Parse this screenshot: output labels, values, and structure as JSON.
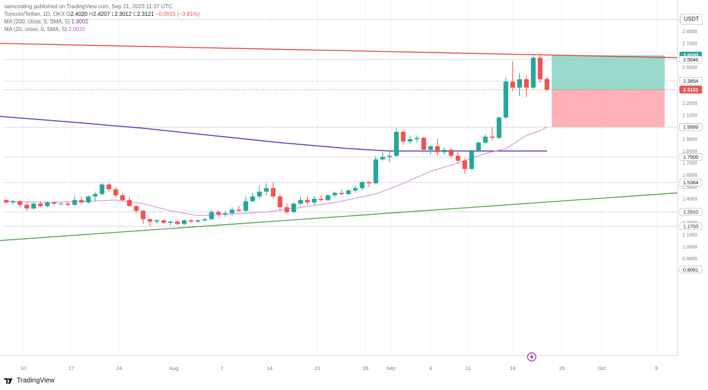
{
  "header": {
    "published": "samcooling published on TradingView.com, Sep 21, 2023 11:37 UTC",
    "symbol_line": {
      "symbol": "Toncoin/Tether, 1D, OKX",
      "o_label": "O",
      "o": "2.4020",
      "h_label": "H",
      "h": "2.4207",
      "l_label": "L",
      "l": "2.3012",
      "c_label": "C",
      "c": "2.3121",
      "change": "−0.0915 (−3.81%)"
    },
    "ma200": {
      "label": "MA (200, close, 0, SMA, 5)",
      "value": "1.8002"
    },
    "ma20": {
      "label": "MA (20, close, 0, SMA, 5)",
      "value": "2.0035"
    }
  },
  "unit_label": "USDT",
  "brand": "TradingView",
  "colors": {
    "up": "#26a69a",
    "down": "#ef5350",
    "ma20": "#ce93d8",
    "ma200": "#673ab7",
    "resistance": "#e53935",
    "support": "#43a047",
    "target_zone": "#7fd1bf",
    "stop_zone": "#fca5ab",
    "price_line": "#ef5350",
    "grid": "#e0e3eb"
  },
  "chart_data": {
    "type": "candlestick",
    "x_tick_labels": [
      "10",
      "17",
      "24",
      "Aug",
      "7",
      "14",
      "21",
      "28",
      "Sep",
      "4",
      "11",
      "18",
      "25",
      "Oct",
      "9"
    ],
    "y_tick_labels": [
      "2.8000",
      "2.7000",
      "2.5000",
      "2.3000",
      "2.2000",
      "2.1000",
      "1.9000",
      "1.8000",
      "1.7000",
      "1.6000",
      "1.5000",
      "1.4000",
      "1.2000",
      "1.1000",
      "1.0000",
      "0.9000"
    ],
    "ylim": [
      0.76,
      2.96
    ],
    "price_labels": [
      {
        "value": 2.8995,
        "text": "2.8995",
        "style": "outline"
      },
      {
        "value": 2.6,
        "text": "2.6000",
        "style": "green"
      },
      {
        "value": 2.5646,
        "text": "2.5646",
        "style": "outline"
      },
      {
        "value": 2.3854,
        "text": "2.3854",
        "style": "outline"
      },
      {
        "value": 2.3151,
        "text": "2.3151",
        "style": "dark"
      },
      {
        "value": 2.3121,
        "text": "2.3121",
        "style": "red"
      },
      {
        "value": 2.0,
        "text": "2.0000",
        "style": "red"
      },
      {
        "value": 1.9999,
        "text": "1.9999",
        "style": "outline"
      },
      {
        "value": 1.7506,
        "text": "1.7506",
        "style": "outline"
      },
      {
        "value": 1.5364,
        "text": "1.5364",
        "style": "outline"
      },
      {
        "value": 1.291,
        "text": "1.2910",
        "style": "outline"
      },
      {
        "value": 1.1703,
        "text": "1.1703",
        "style": "outline"
      },
      {
        "value": 0.8081,
        "text": "0.8081",
        "style": "outline"
      }
    ],
    "horizontal_levels": [
      2.8995,
      2.5646,
      2.3854,
      1.9999,
      1.7506,
      1.5364,
      1.291,
      1.1703
    ],
    "candles": [
      {
        "o": 1.39,
        "h": 1.4,
        "l": 1.36,
        "c": 1.37
      },
      {
        "o": 1.37,
        "h": 1.39,
        "l": 1.35,
        "c": 1.38
      },
      {
        "o": 1.38,
        "h": 1.39,
        "l": 1.33,
        "c": 1.35
      },
      {
        "o": 1.35,
        "h": 1.37,
        "l": 1.3,
        "c": 1.32
      },
      {
        "o": 1.32,
        "h": 1.37,
        "l": 1.31,
        "c": 1.36
      },
      {
        "o": 1.36,
        "h": 1.38,
        "l": 1.33,
        "c": 1.34
      },
      {
        "o": 1.34,
        "h": 1.38,
        "l": 1.33,
        "c": 1.37
      },
      {
        "o": 1.37,
        "h": 1.38,
        "l": 1.34,
        "c": 1.36
      },
      {
        "o": 1.36,
        "h": 1.37,
        "l": 1.35,
        "c": 1.36
      },
      {
        "o": 1.36,
        "h": 1.38,
        "l": 1.34,
        "c": 1.35
      },
      {
        "o": 1.35,
        "h": 1.43,
        "l": 1.34,
        "c": 1.39
      },
      {
        "o": 1.39,
        "h": 1.42,
        "l": 1.36,
        "c": 1.37
      },
      {
        "o": 1.37,
        "h": 1.43,
        "l": 1.36,
        "c": 1.42
      },
      {
        "o": 1.42,
        "h": 1.46,
        "l": 1.38,
        "c": 1.44
      },
      {
        "o": 1.44,
        "h": 1.53,
        "l": 1.43,
        "c": 1.52
      },
      {
        "o": 1.52,
        "h": 1.53,
        "l": 1.46,
        "c": 1.48
      },
      {
        "o": 1.48,
        "h": 1.5,
        "l": 1.41,
        "c": 1.43
      },
      {
        "o": 1.43,
        "h": 1.45,
        "l": 1.38,
        "c": 1.39
      },
      {
        "o": 1.39,
        "h": 1.42,
        "l": 1.33,
        "c": 1.34
      },
      {
        "o": 1.34,
        "h": 1.35,
        "l": 1.28,
        "c": 1.3
      },
      {
        "o": 1.3,
        "h": 1.31,
        "l": 1.19,
        "c": 1.23
      },
      {
        "o": 1.23,
        "h": 1.24,
        "l": 1.17,
        "c": 1.21
      },
      {
        "o": 1.21,
        "h": 1.23,
        "l": 1.19,
        "c": 1.22
      },
      {
        "o": 1.22,
        "h": 1.23,
        "l": 1.19,
        "c": 1.2
      },
      {
        "o": 1.2,
        "h": 1.22,
        "l": 1.18,
        "c": 1.21
      },
      {
        "o": 1.21,
        "h": 1.22,
        "l": 1.18,
        "c": 1.19
      },
      {
        "o": 1.19,
        "h": 1.23,
        "l": 1.18,
        "c": 1.22
      },
      {
        "o": 1.22,
        "h": 1.23,
        "l": 1.2,
        "c": 1.21
      },
      {
        "o": 1.21,
        "h": 1.23,
        "l": 1.2,
        "c": 1.22
      },
      {
        "o": 1.22,
        "h": 1.24,
        "l": 1.21,
        "c": 1.23
      },
      {
        "o": 1.23,
        "h": 1.31,
        "l": 1.22,
        "c": 1.29
      },
      {
        "o": 1.29,
        "h": 1.31,
        "l": 1.25,
        "c": 1.27
      },
      {
        "o": 1.27,
        "h": 1.3,
        "l": 1.25,
        "c": 1.28
      },
      {
        "o": 1.28,
        "h": 1.33,
        "l": 1.26,
        "c": 1.31
      },
      {
        "o": 1.31,
        "h": 1.34,
        "l": 1.29,
        "c": 1.3
      },
      {
        "o": 1.3,
        "h": 1.42,
        "l": 1.29,
        "c": 1.38
      },
      {
        "o": 1.38,
        "h": 1.45,
        "l": 1.37,
        "c": 1.42
      },
      {
        "o": 1.42,
        "h": 1.51,
        "l": 1.4,
        "c": 1.46
      },
      {
        "o": 1.46,
        "h": 1.53,
        "l": 1.43,
        "c": 1.49
      },
      {
        "o": 1.49,
        "h": 1.54,
        "l": 1.4,
        "c": 1.42
      },
      {
        "o": 1.42,
        "h": 1.44,
        "l": 1.3,
        "c": 1.33
      },
      {
        "o": 1.33,
        "h": 1.36,
        "l": 1.27,
        "c": 1.29
      },
      {
        "o": 1.29,
        "h": 1.37,
        "l": 1.28,
        "c": 1.36
      },
      {
        "o": 1.36,
        "h": 1.42,
        "l": 1.34,
        "c": 1.39
      },
      {
        "o": 1.39,
        "h": 1.42,
        "l": 1.35,
        "c": 1.37
      },
      {
        "o": 1.37,
        "h": 1.42,
        "l": 1.35,
        "c": 1.4
      },
      {
        "o": 1.4,
        "h": 1.43,
        "l": 1.38,
        "c": 1.39
      },
      {
        "o": 1.39,
        "h": 1.44,
        "l": 1.38,
        "c": 1.43
      },
      {
        "o": 1.43,
        "h": 1.46,
        "l": 1.41,
        "c": 1.45
      },
      {
        "o": 1.45,
        "h": 1.48,
        "l": 1.43,
        "c": 1.44
      },
      {
        "o": 1.44,
        "h": 1.48,
        "l": 1.43,
        "c": 1.47
      },
      {
        "o": 1.47,
        "h": 1.51,
        "l": 1.45,
        "c": 1.49
      },
      {
        "o": 1.49,
        "h": 1.55,
        "l": 1.47,
        "c": 1.54
      },
      {
        "o": 1.54,
        "h": 1.55,
        "l": 1.5,
        "c": 1.53
      },
      {
        "o": 1.53,
        "h": 1.76,
        "l": 1.52,
        "c": 1.73
      },
      {
        "o": 1.73,
        "h": 1.79,
        "l": 1.72,
        "c": 1.75
      },
      {
        "o": 1.75,
        "h": 1.8,
        "l": 1.71,
        "c": 1.76
      },
      {
        "o": 1.76,
        "h": 1.99,
        "l": 1.75,
        "c": 1.96
      },
      {
        "o": 1.96,
        "h": 1.98,
        "l": 1.85,
        "c": 1.88
      },
      {
        "o": 1.88,
        "h": 1.93,
        "l": 1.86,
        "c": 1.9
      },
      {
        "o": 1.9,
        "h": 1.93,
        "l": 1.87,
        "c": 1.91
      },
      {
        "o": 1.91,
        "h": 1.92,
        "l": 1.79,
        "c": 1.81
      },
      {
        "o": 1.81,
        "h": 1.85,
        "l": 1.77,
        "c": 1.84
      },
      {
        "o": 1.84,
        "h": 1.9,
        "l": 1.76,
        "c": 1.79
      },
      {
        "o": 1.79,
        "h": 1.83,
        "l": 1.77,
        "c": 1.81
      },
      {
        "o": 1.81,
        "h": 1.82,
        "l": 1.74,
        "c": 1.76
      },
      {
        "o": 1.76,
        "h": 1.79,
        "l": 1.7,
        "c": 1.72
      },
      {
        "o": 1.72,
        "h": 1.74,
        "l": 1.61,
        "c": 1.65
      },
      {
        "o": 1.65,
        "h": 1.81,
        "l": 1.64,
        "c": 1.8
      },
      {
        "o": 1.8,
        "h": 1.88,
        "l": 1.79,
        "c": 1.87
      },
      {
        "o": 1.87,
        "h": 1.94,
        "l": 1.86,
        "c": 1.92
      },
      {
        "o": 1.92,
        "h": 2.0,
        "l": 1.89,
        "c": 1.91
      },
      {
        "o": 1.91,
        "h": 2.09,
        "l": 1.9,
        "c": 2.08
      },
      {
        "o": 2.08,
        "h": 2.42,
        "l": 2.07,
        "c": 2.38
      },
      {
        "o": 2.38,
        "h": 2.55,
        "l": 2.3,
        "c": 2.33
      },
      {
        "o": 2.33,
        "h": 2.45,
        "l": 2.26,
        "c": 2.4
      },
      {
        "o": 2.4,
        "h": 2.43,
        "l": 2.25,
        "c": 2.33
      },
      {
        "o": 2.33,
        "h": 2.6,
        "l": 2.32,
        "c": 2.58
      },
      {
        "o": 2.58,
        "h": 2.6,
        "l": 2.37,
        "c": 2.4
      },
      {
        "o": 2.402,
        "h": 2.4207,
        "l": 2.3012,
        "c": 2.3121
      }
    ],
    "ma20_points": [
      [
        0,
        1.38
      ],
      [
        6,
        1.37
      ],
      [
        12,
        1.38
      ],
      [
        16,
        1.39
      ],
      [
        20,
        1.36
      ],
      [
        24,
        1.3
      ],
      [
        28,
        1.26
      ],
      [
        32,
        1.27
      ],
      [
        38,
        1.29
      ],
      [
        42,
        1.32
      ],
      [
        48,
        1.37
      ],
      [
        54,
        1.44
      ],
      [
        58,
        1.53
      ],
      [
        62,
        1.63
      ],
      [
        66,
        1.7
      ],
      [
        70,
        1.78
      ],
      [
        73,
        1.82
      ],
      [
        76,
        1.93
      ],
      [
        78,
        1.97
      ],
      [
        79,
        2.0
      ]
    ],
    "ma200_points": [
      [
        -1,
        2.09
      ],
      [
        10,
        2.04
      ],
      [
        20,
        1.99
      ],
      [
        30,
        1.93
      ],
      [
        40,
        1.87
      ],
      [
        50,
        1.82
      ],
      [
        56,
        1.8
      ],
      [
        79,
        1.8
      ]
    ],
    "resistance_line": [
      [
        -1,
        2.7
      ],
      [
        91,
        2.58
      ]
    ],
    "support_line": [
      [
        -1,
        1.05
      ],
      [
        91,
        1.45
      ]
    ],
    "position": {
      "entry": 2.3121,
      "target": 2.6,
      "stop": 2.0,
      "start_index": 80,
      "end_index": 96
    },
    "current_price": 2.3121
  }
}
